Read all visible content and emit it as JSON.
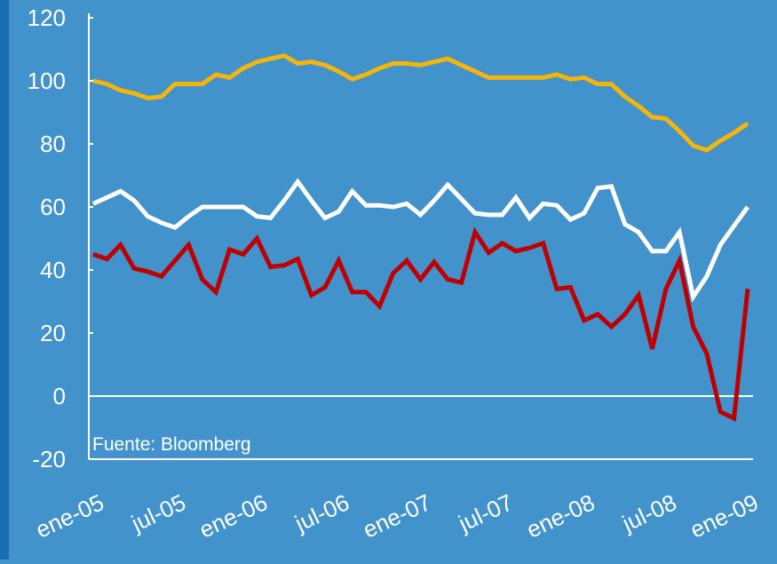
{
  "chart_data": {
    "type": "line",
    "categories": [
      "ene-05",
      null,
      null,
      null,
      null,
      null,
      "jul-05",
      null,
      null,
      null,
      null,
      null,
      "ene-06",
      null,
      null,
      null,
      null,
      null,
      "jul-06",
      null,
      null,
      null,
      null,
      null,
      "ene-07",
      null,
      null,
      null,
      null,
      null,
      "jul-07",
      null,
      null,
      null,
      null,
      null,
      "ene-08",
      null,
      null,
      null,
      null,
      null,
      "jul-08",
      null,
      null,
      null,
      null,
      null,
      "ene-09"
    ],
    "series": [
      {
        "color": "#f5b50a",
        "values": [
          100,
          99,
          97,
          96,
          94.5,
          95,
          99,
          99,
          99,
          102,
          101,
          104,
          106,
          107,
          108,
          105.5,
          106,
          105,
          103,
          100.5,
          102,
          104,
          105.5,
          105.5,
          105,
          106,
          107,
          105,
          103,
          101,
          101,
          101,
          101,
          101,
          102,
          100.5,
          101,
          99,
          99,
          95,
          92,
          88.5,
          88,
          84,
          79.5,
          78,
          81,
          83.5,
          86.5
        ]
      },
      {
        "color": "#ffffff",
        "values": [
          61,
          63,
          65,
          62,
          57,
          55,
          53.5,
          57,
          60,
          60,
          60,
          60,
          57,
          56.5,
          62,
          68,
          62,
          56.5,
          58.5,
          65,
          60.5,
          60.5,
          60,
          61,
          57.5,
          62,
          67,
          62.5,
          58,
          57.5,
          57.5,
          63,
          56.5,
          61,
          60.5,
          56,
          58,
          66,
          66.5,
          54.5,
          52,
          46,
          46,
          52,
          31.5,
          38,
          48,
          54,
          60
        ]
      },
      {
        "color": "#c00000",
        "values": [
          45,
          43.5,
          48,
          40.5,
          39.5,
          38,
          43,
          48,
          37,
          33,
          46.5,
          45,
          50,
          41,
          41.5,
          43.5,
          32,
          34.5,
          43,
          33,
          33,
          28.5,
          39,
          43,
          37,
          42.5,
          37,
          36,
          52,
          45.5,
          48.5,
          46,
          47,
          48.5,
          34,
          34.5,
          24,
          26,
          22,
          26,
          32,
          15,
          34,
          43,
          22,
          13.5,
          -5,
          -7,
          34
        ]
      }
    ],
    "ylim": [
      -20,
      120
    ],
    "yticks": [
      -20,
      0,
      20,
      40,
      60,
      80,
      100,
      120
    ],
    "annotation": "Fuente: Bloomberg"
  }
}
